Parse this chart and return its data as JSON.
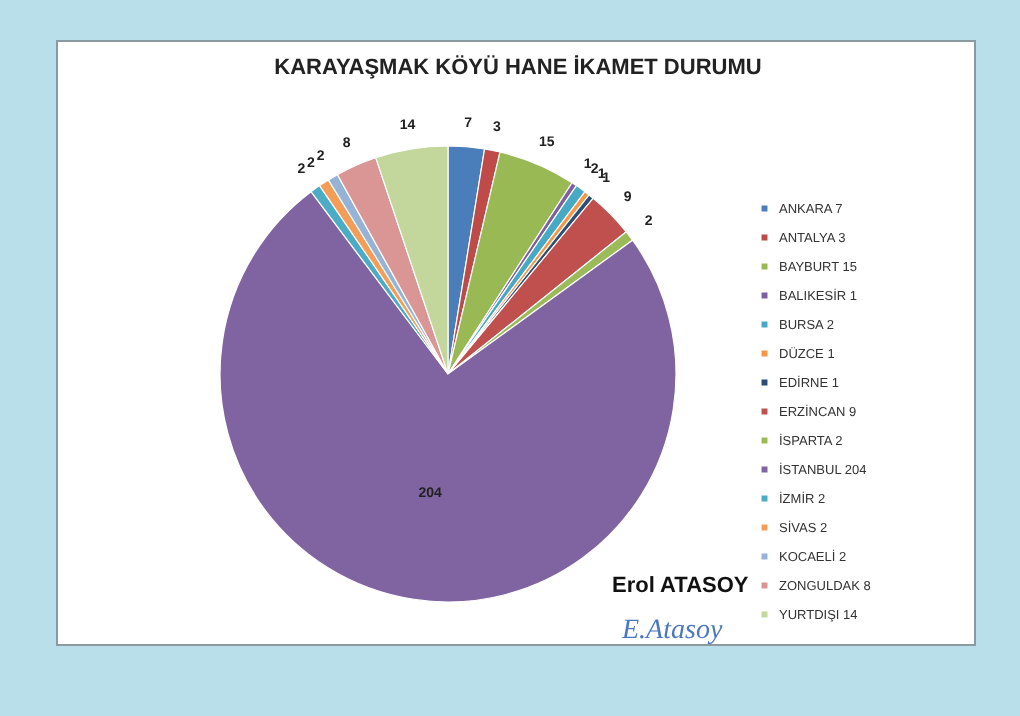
{
  "chart_data": {
    "type": "pie",
    "title": "KARAYAŞMAK KÖYÜ HANE İKAMET DURUMU",
    "categories": [
      "ANKARA  7",
      "ANTALYA 3",
      "BAYBURT 15",
      "BALIKESİR 1",
      "BURSA  2",
      "DÜZCE  1",
      "EDİRNE  1",
      "ERZİNCAN  9",
      "İSPARTA  2",
      "İSTANBUL 204",
      "İZMİR  2",
      "SİVAS  2",
      "KOCAELİ  2",
      "ZONGULDAK  8",
      "YURTDIŞI 14"
    ],
    "values": [
      7,
      3,
      15,
      1,
      2,
      1,
      1,
      9,
      2,
      204,
      2,
      2,
      2,
      8,
      14
    ],
    "colors": [
      "#4a7ebb",
      "#be4b48",
      "#98b954",
      "#7d60a0",
      "#46aac5",
      "#f79646",
      "#2c4d75",
      "#c0504d",
      "#9bbb59",
      "#8064a2",
      "#4bacc6",
      "#f59d56",
      "#95b3d7",
      "#d99694",
      "#c3d69b"
    ],
    "data_labels": true,
    "legend": "right",
    "annotations": [
      "Erol ATASOY",
      "E.Atasoy"
    ]
  }
}
